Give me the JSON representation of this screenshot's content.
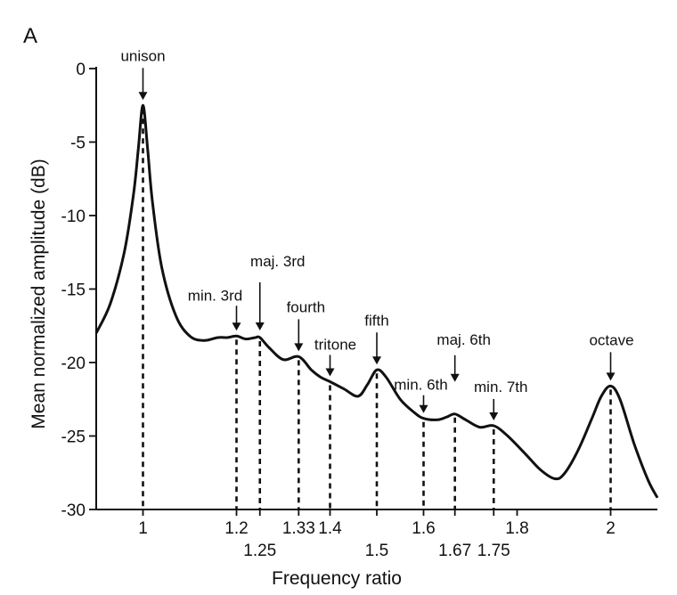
{
  "panel_label": "A",
  "chart_data": {
    "type": "line",
    "xlabel": "Frequency ratio",
    "ylabel": "Mean normalized amplitude (dB)",
    "xlim": [
      0.9,
      2.1
    ],
    "ylim": [
      -30,
      0
    ],
    "yticks": [
      0,
      -5,
      -10,
      -15,
      -20,
      -25,
      -30
    ],
    "xticks_top_row": [
      "1",
      "1.2",
      "1.33",
      "1.4",
      "1.6",
      "1.8",
      "2"
    ],
    "xticks_bottom_row": [
      "1.25",
      "1.5",
      "1.67",
      "1.75"
    ],
    "xtick_values": {
      "1": 1.0,
      "1.2": 1.2,
      "1.25": 1.25,
      "1.33": 1.333,
      "1.4": 1.4,
      "1.5": 1.5,
      "1.6": 1.6,
      "1.67": 1.667,
      "1.75": 1.75,
      "1.8": 1.8,
      "2": 2.0
    },
    "series": [
      {
        "x": [
          0.9,
          0.93,
          0.96,
          0.98,
          0.99,
          1.0,
          1.01,
          1.02,
          1.04,
          1.07,
          1.1,
          1.13,
          1.16,
          1.18,
          1.2,
          1.22,
          1.24,
          1.25,
          1.27,
          1.3,
          1.333,
          1.36,
          1.38,
          1.4,
          1.43,
          1.46,
          1.48,
          1.5,
          1.52,
          1.55,
          1.58,
          1.6,
          1.63,
          1.65,
          1.667,
          1.69,
          1.72,
          1.75,
          1.78,
          1.82,
          1.85,
          1.88,
          1.9,
          1.93,
          1.96,
          1.98,
          2.0,
          2.02,
          2.05,
          2.08,
          2.1
        ],
        "y": [
          -18.0,
          -16.0,
          -12.5,
          -8.5,
          -5.5,
          -2.5,
          -5.5,
          -9.0,
          -13.5,
          -16.8,
          -18.2,
          -18.5,
          -18.3,
          -18.3,
          -18.2,
          -18.4,
          -18.3,
          -18.3,
          -19.0,
          -19.8,
          -19.6,
          -20.5,
          -21.0,
          -21.3,
          -21.8,
          -22.3,
          -21.5,
          -20.5,
          -21.0,
          -22.5,
          -23.4,
          -23.8,
          -23.9,
          -23.7,
          -23.5,
          -23.9,
          -24.4,
          -24.3,
          -25.0,
          -26.3,
          -27.3,
          -27.9,
          -27.6,
          -26.0,
          -23.8,
          -22.3,
          -21.6,
          -22.5,
          -25.5,
          -28.0,
          -29.2
        ]
      }
    ],
    "annotations": [
      {
        "label": "unison",
        "x": 1.0,
        "y": -2.5
      },
      {
        "label": "min. 3rd",
        "x": 1.2,
        "y": -18.2
      },
      {
        "label": "maj. 3rd",
        "x": 1.25,
        "y": -18.3
      },
      {
        "label": "fourth",
        "x": 1.333,
        "y": -19.6
      },
      {
        "label": "tritone",
        "x": 1.4,
        "y": -21.3
      },
      {
        "label": "fifth",
        "x": 1.5,
        "y": -20.5
      },
      {
        "label": "min. 6th",
        "x": 1.6,
        "y": -23.8
      },
      {
        "label": "maj. 6th",
        "x": 1.667,
        "y": -23.5
      },
      {
        "label": "min. 7th",
        "x": 1.75,
        "y": -24.3
      },
      {
        "label": "octave",
        "x": 2.0,
        "y": -21.6
      }
    ]
  }
}
